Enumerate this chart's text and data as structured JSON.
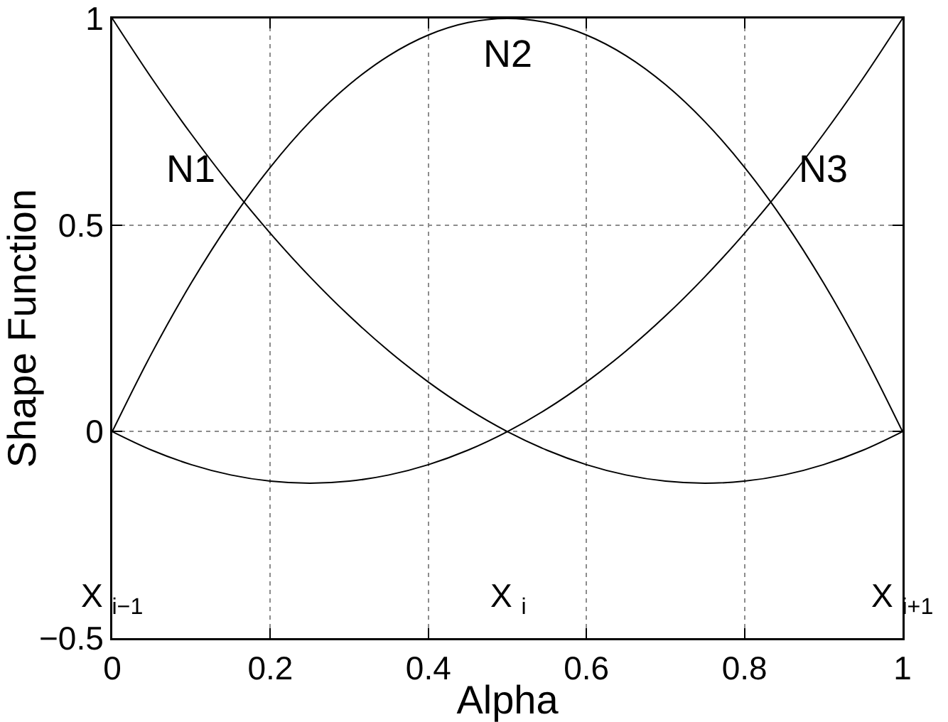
{
  "chart_data": {
    "type": "line",
    "xlabel": "Alpha",
    "ylabel": "Shape Function",
    "x": [
      0,
      0.05,
      0.1,
      0.15,
      0.2,
      0.25,
      0.3,
      0.35,
      0.4,
      0.45,
      0.5,
      0.55,
      0.6,
      0.65,
      0.7,
      0.75,
      0.8,
      0.85,
      0.9,
      0.95,
      1
    ],
    "series": [
      {
        "name": "N1",
        "color": "#000000",
        "values": [
          1,
          0.855,
          0.72,
          0.595,
          0.48,
          0.375,
          0.28,
          0.195,
          0.12,
          0.055,
          0,
          -0.045,
          -0.08,
          -0.105,
          -0.12,
          -0.125,
          -0.12,
          -0.105,
          -0.08,
          -0.045,
          0
        ]
      },
      {
        "name": "N2",
        "color": "#000000",
        "values": [
          0,
          0.19,
          0.36,
          0.51,
          0.64,
          0.75,
          0.84,
          0.91,
          0.96,
          0.99,
          1,
          0.99,
          0.96,
          0.91,
          0.84,
          0.75,
          0.64,
          0.51,
          0.36,
          0.19,
          0
        ]
      },
      {
        "name": "N3",
        "color": "#000000",
        "values": [
          0,
          -0.045,
          -0.08,
          -0.105,
          -0.12,
          -0.125,
          -0.12,
          -0.105,
          -0.08,
          -0.045,
          0,
          0.055,
          0.12,
          0.195,
          0.28,
          0.375,
          0.48,
          0.595,
          0.72,
          0.855,
          1
        ]
      }
    ],
    "annotations": [
      "X $_{i−1}$",
      "X $_{i}$",
      "X $_{i+1}$"
    ],
    "xlim": [
      0,
      1
    ],
    "xticks": [
      0,
      0.2,
      0.4,
      0.6,
      0.8,
      1
    ],
    "ylim": [
      -0.5,
      1
    ],
    "yticks": [
      -0.5,
      0,
      0.5,
      1
    ],
    "grid": true,
    "legend": false,
    "marker": "none",
    "line_style": "solid"
  }
}
